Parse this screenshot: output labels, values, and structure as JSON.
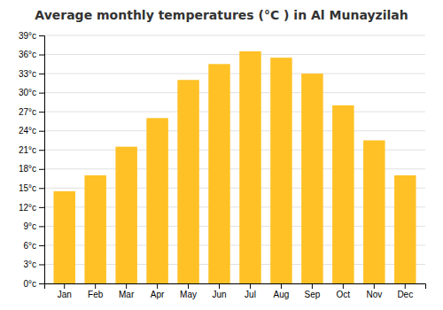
{
  "chart_data": {
    "type": "bar",
    "title": "Average monthly temperatures (°C ) in Al Munayzilah",
    "categories": [
      "Jan",
      "Feb",
      "Mar",
      "Apr",
      "May",
      "Jun",
      "Jul",
      "Aug",
      "Sep",
      "Oct",
      "Nov",
      "Dec"
    ],
    "values": [
      14.5,
      17.0,
      21.5,
      26.0,
      32.0,
      34.5,
      36.5,
      35.5,
      33.0,
      28.0,
      22.5,
      17.0
    ],
    "color": "#FFC125",
    "ylim": [
      0,
      39
    ],
    "yticks": [
      {
        "value": 0,
        "label": "0°c"
      },
      {
        "value": 3,
        "label": "3°c"
      },
      {
        "value": 6,
        "label": "6°c"
      },
      {
        "value": 9,
        "label": "9°c"
      },
      {
        "value": 12,
        "label": "12°c"
      },
      {
        "value": 15,
        "label": "15°c"
      },
      {
        "value": 18,
        "label": "18°c"
      },
      {
        "value": 21,
        "label": "21°c"
      },
      {
        "value": 24,
        "label": "24°c"
      },
      {
        "value": 27,
        "label": "27°c"
      },
      {
        "value": 30,
        "label": "30°c"
      },
      {
        "value": 33,
        "label": "33°c"
      },
      {
        "value": 36,
        "label": "36°c"
      },
      {
        "value": 39,
        "label": "39°c"
      }
    ],
    "grid": true
  }
}
